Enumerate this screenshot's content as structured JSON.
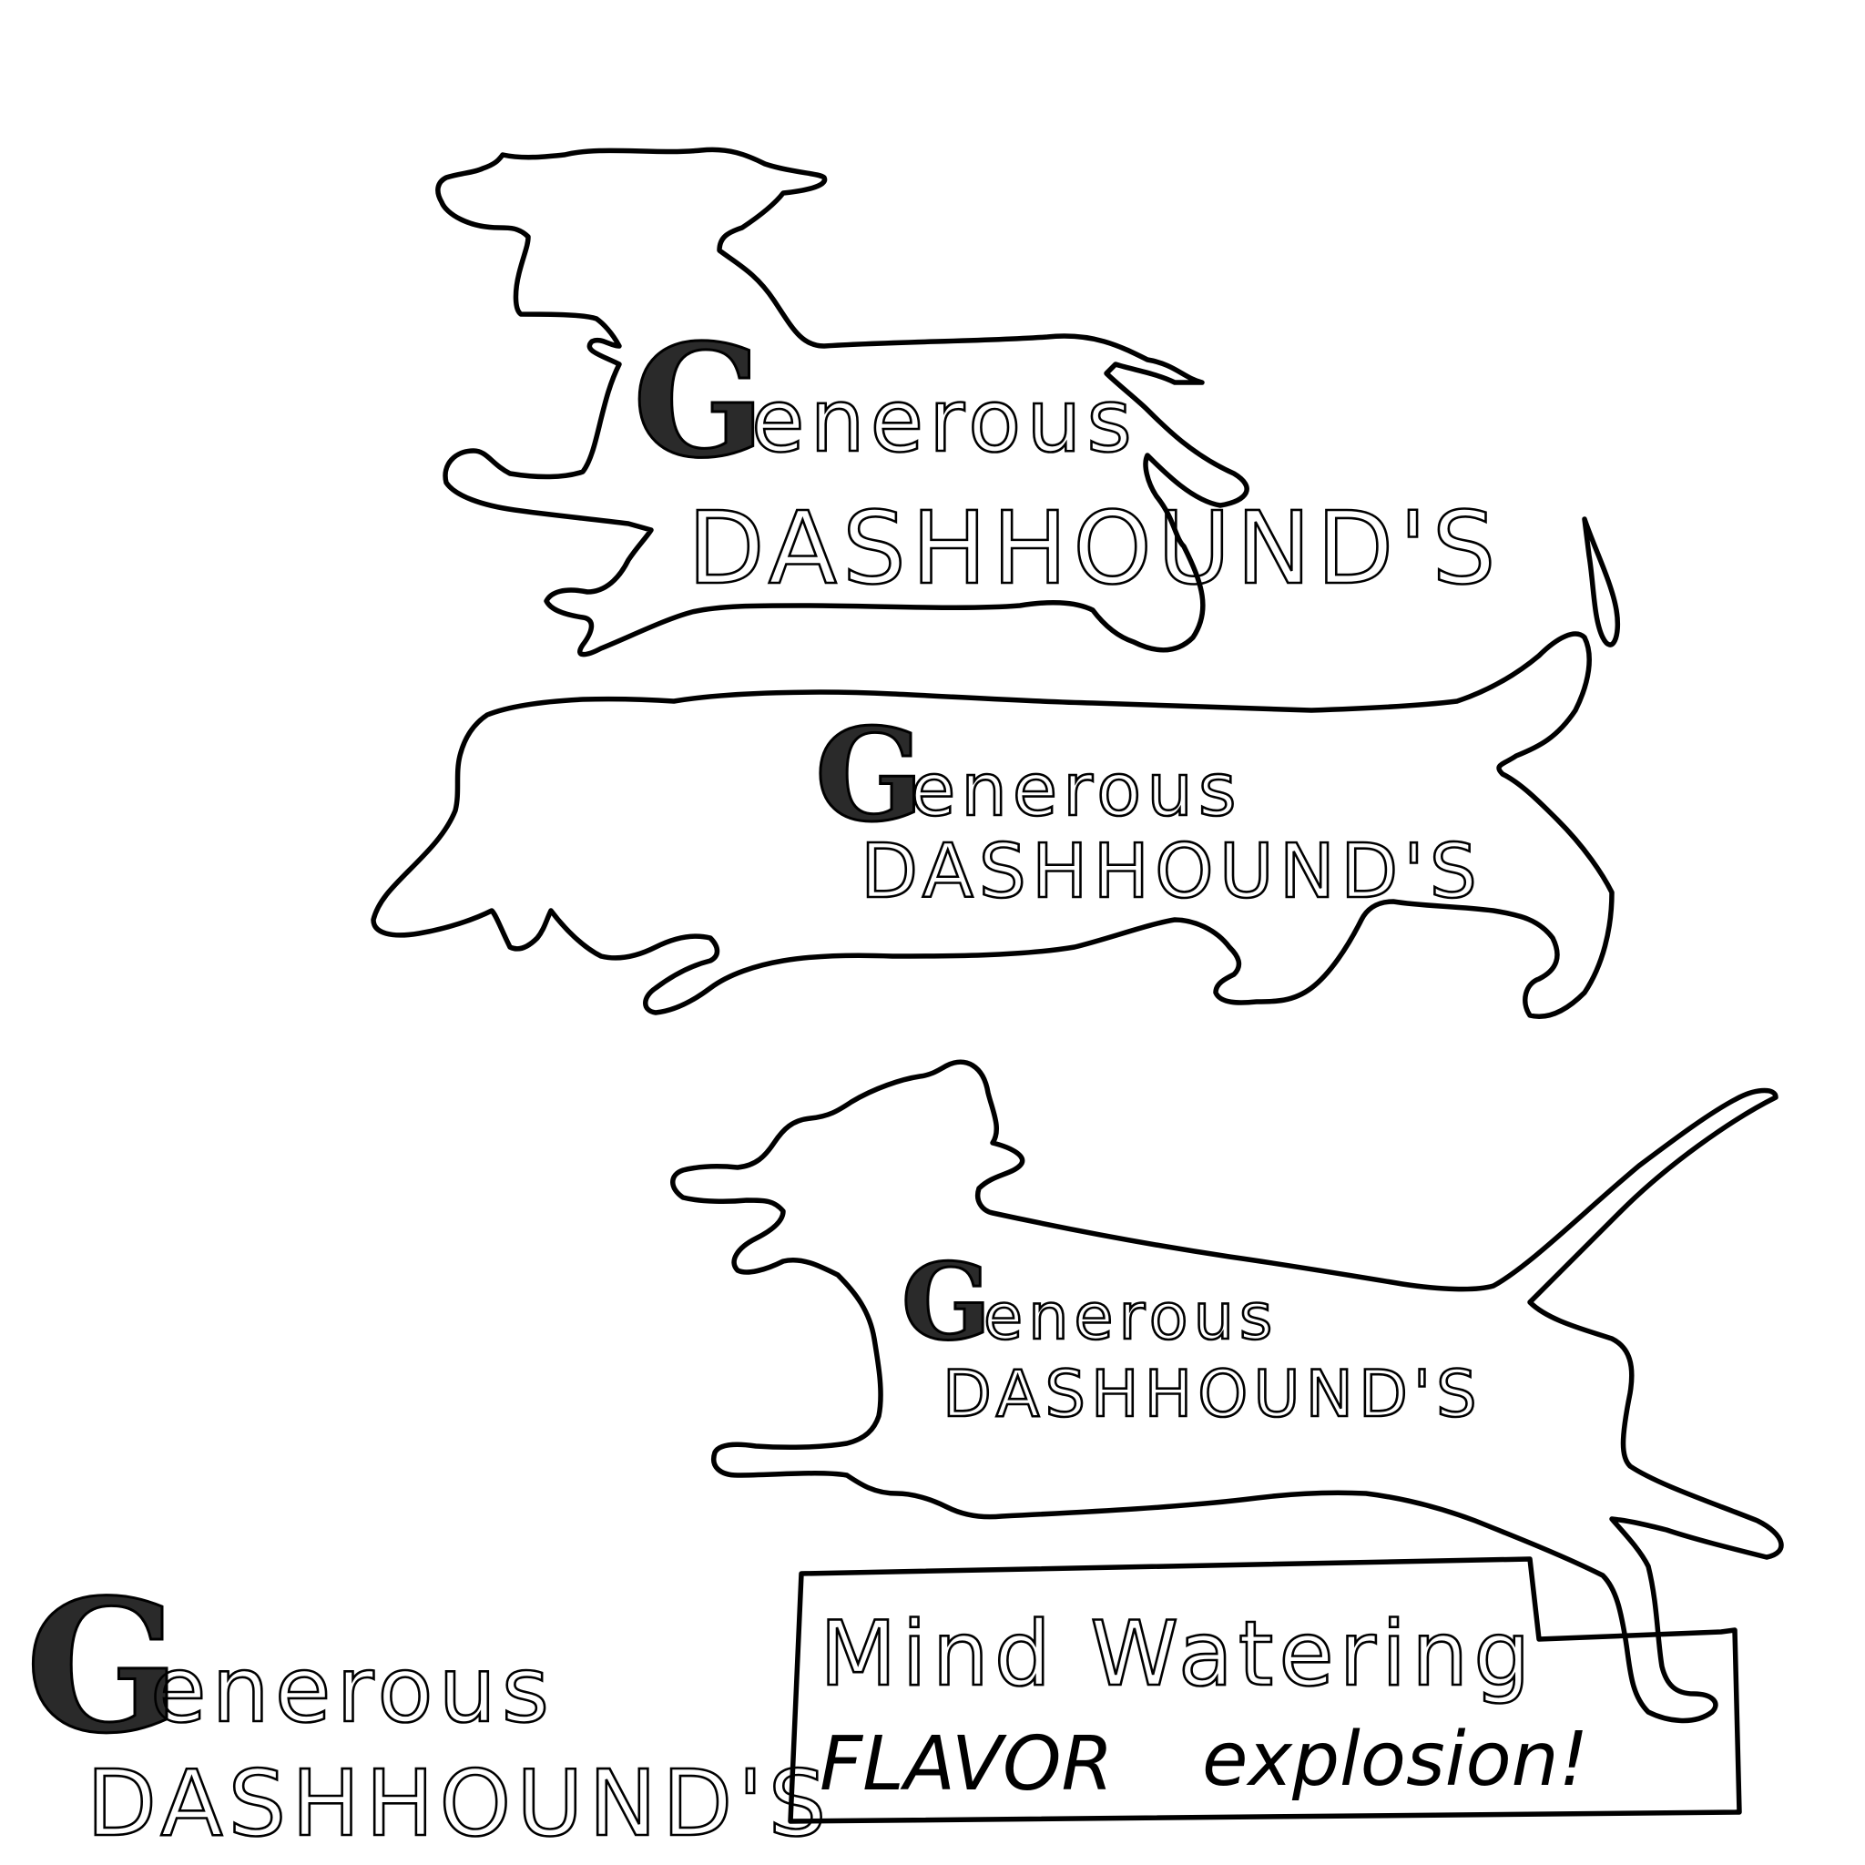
{
  "logos": [
    {
      "initial": "G",
      "rest": "enerous",
      "second_line": "DASHHOUND'S"
    },
    {
      "initial": "G",
      "rest": "enerous",
      "second_line": "DASHHOUND'S"
    },
    {
      "initial": "G",
      "rest": "enerous",
      "second_line": "DASHHOUND'S"
    },
    {
      "initial": "G",
      "rest": "enerous",
      "second_line": "DASHHOUND'S"
    }
  ],
  "slogan": {
    "line1": "Mind Watering",
    "line2a": "FLAVOR",
    "line2b": "explosion!"
  },
  "colors": {
    "ink": "#000000",
    "paper": "#ffffff"
  }
}
